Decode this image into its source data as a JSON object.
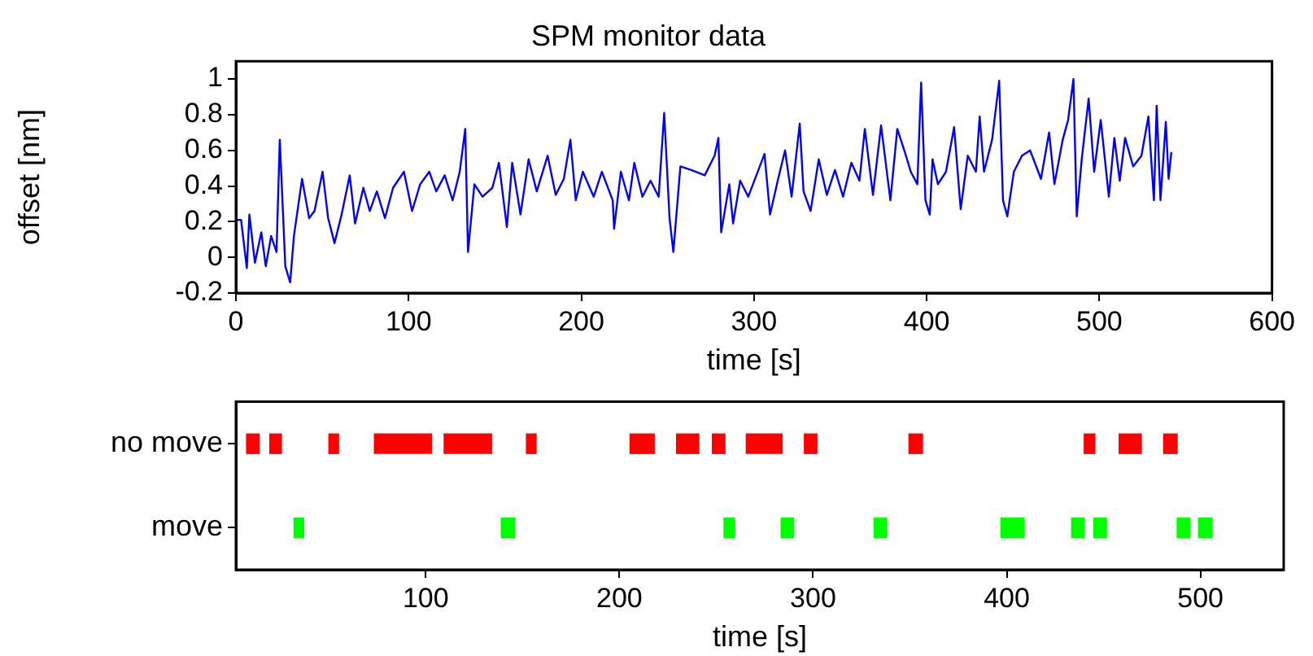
{
  "chart_data": [
    {
      "type": "line",
      "title": "SPM monitor data",
      "xlabel": "time [s]",
      "ylabel": "offset [nm]",
      "xlim": [
        0,
        600
      ],
      "xticks": [
        0,
        100,
        200,
        300,
        400,
        500,
        600
      ],
      "ylim": [
        -0.2,
        1.1
      ],
      "yticks": [
        -0.2,
        0,
        0.2,
        0.4,
        0.6,
        0.8,
        1
      ],
      "grid": false,
      "legend": false,
      "marker": "none",
      "line_style": "solid",
      "series": [
        {
          "color": "#0000ff",
          "x": [
            0,
            3,
            6.3,
            7.8,
            11,
            14.7,
            17.3,
            20.4,
            23.5,
            25.4,
            28.6,
            31.4,
            33.6,
            38.3,
            42.4,
            45.5,
            50.2,
            53.4,
            57.1,
            61.2,
            65.9,
            69,
            73.8,
            77.5,
            81.6,
            86.3,
            91,
            97.3,
            102,
            106.7,
            112,
            116,
            120.9,
            125.5,
            129.6,
            132.8,
            134.4,
            138.1,
            142.8,
            148.5,
            152.3,
            156.9,
            160,
            164.8,
            169.5,
            174.2,
            180.5,
            185.2,
            189.9,
            193.7,
            196.8,
            200.9,
            207.2,
            211.9,
            218.2,
            219,
            222.9,
            227.6,
            230.7,
            235.4,
            240.1,
            244.8,
            248,
            251.1,
            253.3,
            257.4,
            263.7,
            271.5,
            277.2,
            279.4,
            281,
            285.7,
            287.9,
            292,
            296.7,
            301.4,
            306.1,
            309.3,
            314,
            318,
            321.8,
            326.5,
            328.7,
            332.8,
            337.5,
            342.2,
            346.9,
            351.6,
            356.4,
            361.1,
            364.2,
            368.9,
            373.6,
            379,
            383,
            387.7,
            390.8,
            394.6,
            396.8,
            399.3,
            401.8,
            403.4,
            406.5,
            411.2,
            415.9,
            419.7,
            423.8,
            428.5,
            430.7,
            433.2,
            437.9,
            442,
            444.2,
            446.7,
            450.5,
            455.2,
            459.9,
            466.2,
            470.9,
            474,
            478.8,
            481.9,
            485,
            486.9,
            489.8,
            493.8,
            497,
            500.8,
            505.5,
            508.7,
            511.8,
            514.9,
            519.6,
            524.4,
            528.4,
            531.6,
            533.2,
            535.4,
            538.5,
            540.1,
            541.7
          ],
          "values": [
            0.21,
            0.21,
            -0.06,
            0.24,
            -0.03,
            0.14,
            -0.05,
            0.12,
            0.03,
            0.66,
            -0.05,
            -0.14,
            0.12,
            0.44,
            0.22,
            0.26,
            0.48,
            0.22,
            0.08,
            0.24,
            0.46,
            0.19,
            0.39,
            0.26,
            0.37,
            0.22,
            0.39,
            0.48,
            0.26,
            0.41,
            0.48,
            0.37,
            0.46,
            0.32,
            0.48,
            0.72,
            0.03,
            0.41,
            0.34,
            0.39,
            0.53,
            0.17,
            0.53,
            0.24,
            0.55,
            0.37,
            0.57,
            0.35,
            0.44,
            0.66,
            0.32,
            0.48,
            0.34,
            0.48,
            0.32,
            0.16,
            0.48,
            0.32,
            0.53,
            0.34,
            0.43,
            0.34,
            0.81,
            0.22,
            0.03,
            0.51,
            0.49,
            0.46,
            0.57,
            0.67,
            0.14,
            0.41,
            0.19,
            0.43,
            0.34,
            0.46,
            0.58,
            0.24,
            0.44,
            0.6,
            0.34,
            0.75,
            0.37,
            0.26,
            0.55,
            0.35,
            0.49,
            0.34,
            0.53,
            0.43,
            0.72,
            0.35,
            0.74,
            0.32,
            0.72,
            0.58,
            0.48,
            0.41,
            0.98,
            0.32,
            0.24,
            0.55,
            0.41,
            0.48,
            0.73,
            0.27,
            0.57,
            0.48,
            0.79,
            0.48,
            0.66,
            0.99,
            0.32,
            0.23,
            0.48,
            0.57,
            0.6,
            0.44,
            0.7,
            0.41,
            0.66,
            0.77,
            1,
            0.23,
            0.55,
            0.89,
            0.48,
            0.77,
            0.34,
            0.67,
            0.43,
            0.67,
            0.51,
            0.57,
            0.79,
            0.32,
            0.85,
            0.32,
            0.76,
            0.44,
            0.59
          ]
        }
      ]
    },
    {
      "type": "bar",
      "orientation": "horizontal",
      "xlabel": "time [s]",
      "categories": [
        "no move",
        "move"
      ],
      "xlim": [
        2,
        543
      ],
      "xticks": [
        100,
        200,
        300,
        400,
        500
      ],
      "grid": false,
      "legend": false,
      "series": [
        {
          "color": "#ff0000",
          "values": [
            6.5,
            null
          ],
          "base": [
            7.5,
            null
          ]
        },
        {
          "color": "#ff0000",
          "values": [
            6,
            null
          ],
          "base": [
            19.5,
            null
          ]
        },
        {
          "color": "#ff0000",
          "values": [
            5,
            null
          ],
          "base": [
            50,
            null
          ]
        },
        {
          "color": "#ff0000",
          "values": [
            29.5,
            null
          ],
          "base": [
            73.5,
            null
          ]
        },
        {
          "color": "#ff0000",
          "values": [
            24.5,
            null
          ],
          "base": [
            109.5,
            null
          ]
        },
        {
          "color": "#ff0000",
          "values": [
            5,
            null
          ],
          "base": [
            152,
            null
          ]
        },
        {
          "color": "#ff0000",
          "values": [
            12.5,
            null
          ],
          "base": [
            205.5,
            null
          ]
        },
        {
          "color": "#ff0000",
          "values": [
            11.5,
            null
          ],
          "base": [
            229.5,
            null
          ]
        },
        {
          "color": "#ff0000",
          "values": [
            6.5,
            null
          ],
          "base": [
            248,
            null
          ]
        },
        {
          "color": "#ff0000",
          "values": [
            18.5,
            null
          ],
          "base": [
            265.5,
            null
          ]
        },
        {
          "color": "#ff0000",
          "values": [
            6.5,
            null
          ],
          "base": [
            295.5,
            null
          ]
        },
        {
          "color": "#ff0000",
          "values": [
            7,
            null
          ],
          "base": [
            349.5,
            null
          ]
        },
        {
          "color": "#ff0000",
          "values": [
            5.5,
            null
          ],
          "base": [
            440,
            null
          ]
        },
        {
          "color": "#ff0000",
          "values": [
            11.5,
            null
          ],
          "base": [
            458,
            null
          ]
        },
        {
          "color": "#ff0000",
          "values": [
            7,
            null
          ],
          "base": [
            481,
            null
          ]
        },
        {
          "color": "#00ff00",
          "values": [
            null,
            5
          ],
          "base": [
            null,
            32
          ]
        },
        {
          "color": "#00ff00",
          "values": [
            null,
            7
          ],
          "base": [
            null,
            139
          ]
        },
        {
          "color": "#00ff00",
          "values": [
            null,
            5.5
          ],
          "base": [
            null,
            254
          ]
        },
        {
          "color": "#00ff00",
          "values": [
            null,
            6.5
          ],
          "base": [
            null,
            283.5
          ]
        },
        {
          "color": "#00ff00",
          "values": [
            null,
            6.5
          ],
          "base": [
            null,
            331.5
          ]
        },
        {
          "color": "#00ff00",
          "values": [
            null,
            12
          ],
          "base": [
            null,
            397
          ]
        },
        {
          "color": "#00ff00",
          "values": [
            null,
            6.5
          ],
          "base": [
            null,
            433.5
          ]
        },
        {
          "color": "#00ff00",
          "values": [
            null,
            6.5
          ],
          "base": [
            null,
            445
          ]
        },
        {
          "color": "#00ff00",
          "values": [
            null,
            6.5
          ],
          "base": [
            null,
            488
          ]
        },
        {
          "color": "#00ff00",
          "values": [
            null,
            7
          ],
          "base": [
            null,
            499
          ]
        }
      ]
    }
  ]
}
